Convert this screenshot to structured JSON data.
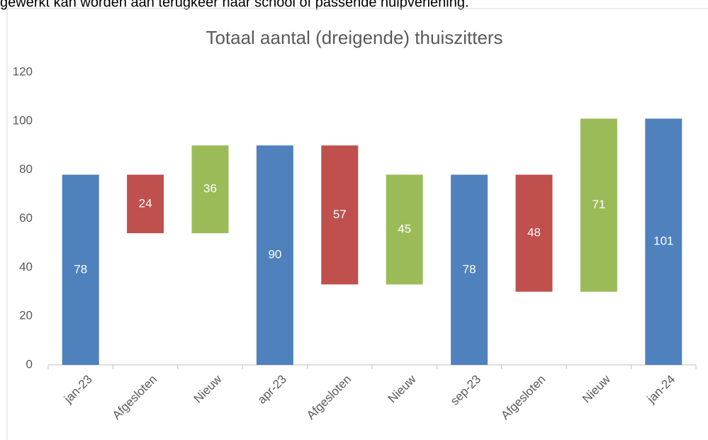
{
  "document": {
    "text": "gewerkt kan worden aan terugkeer naar school of passende hulpverlening."
  },
  "chart_data": {
    "type": "waterfall",
    "title": "Totaal aantal (dreigende) thuiszitters",
    "categories": [
      "jan-23",
      "Afgesloten",
      "Nieuw",
      "apr-23",
      "Afgesloten",
      "Nieuw",
      "sep-23",
      "Afgesloten",
      "Nieuw",
      "jan-24"
    ],
    "values": [
      78,
      24,
      36,
      90,
      57,
      45,
      78,
      48,
      71,
      101
    ],
    "kinds": [
      "total",
      "decrease",
      "increase",
      "total",
      "decrease",
      "increase",
      "total",
      "decrease",
      "increase",
      "total"
    ],
    "colors": {
      "total": "#4f81bd",
      "decrease": "#c0504d",
      "increase": "#9bbb59"
    },
    "ylim": [
      0,
      120
    ],
    "yticks": [
      0,
      20,
      40,
      60,
      80,
      100,
      120
    ],
    "grid": false
  }
}
